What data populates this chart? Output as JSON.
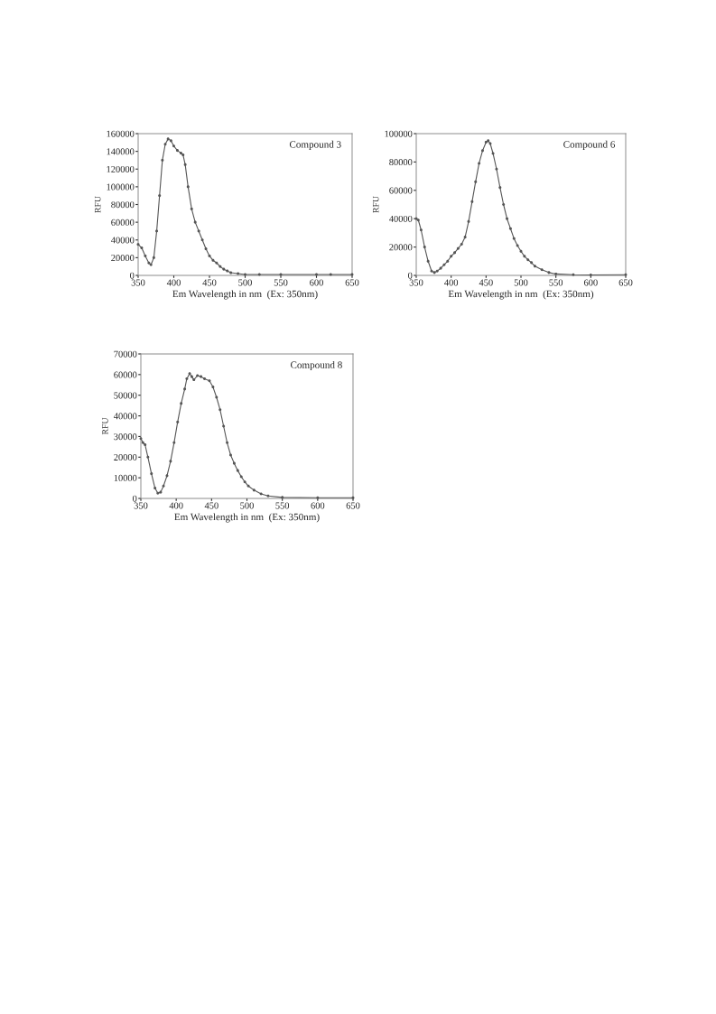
{
  "chart_data": [
    {
      "type": "line",
      "xlabel": "Em Wavelength in nm  (Ex: 350nm)",
      "ylabel": "RFU",
      "annotations": [
        "Compound 3"
      ],
      "xlim": [
        350,
        650
      ],
      "xticks": [
        350,
        400,
        450,
        500,
        550,
        600,
        650
      ],
      "ylim": [
        0,
        160000
      ],
      "yticks": [
        0,
        20000,
        40000,
        60000,
        80000,
        100000,
        120000,
        140000,
        160000
      ],
      "grid": false,
      "marker": "circle",
      "line_style": "solid",
      "series": [
        {
          "color": "#555555",
          "x": [
            350,
            355,
            360,
            365,
            368,
            372,
            376,
            380,
            384,
            388,
            392,
            396,
            400,
            405,
            410,
            413,
            416,
            420,
            425,
            430,
            435,
            440,
            445,
            450,
            455,
            460,
            465,
            470,
            475,
            480,
            490,
            500,
            520,
            550,
            600,
            620,
            650
          ],
          "values": [
            35000,
            31000,
            22000,
            14000,
            12000,
            20000,
            50000,
            90000,
            130000,
            148000,
            154000,
            152000,
            146000,
            141000,
            138000,
            136000,
            125000,
            100000,
            75000,
            60000,
            50000,
            40000,
            30000,
            22000,
            17000,
            14000,
            10000,
            7000,
            5000,
            3000,
            2000,
            1000,
            1000,
            1000,
            1000,
            1000,
            1000
          ]
        }
      ]
    },
    {
      "type": "line",
      "xlabel": "Em Wavelength in nm  (Ex: 350nm)",
      "ylabel": "RFU",
      "annotations": [
        "Compound 6"
      ],
      "xlim": [
        350,
        650
      ],
      "xticks": [
        350,
        400,
        450,
        500,
        550,
        600,
        650
      ],
      "ylim": [
        0,
        100000
      ],
      "yticks": [
        0,
        20000,
        40000,
        60000,
        80000,
        100000
      ],
      "grid": false,
      "marker": "circle",
      "line_style": "solid",
      "series": [
        {
          "color": "#555555",
          "x": [
            350,
            353,
            357,
            362,
            367,
            372,
            376,
            380,
            385,
            390,
            395,
            400,
            405,
            410,
            415,
            420,
            425,
            430,
            435,
            440,
            445,
            450,
            453,
            456,
            460,
            465,
            470,
            475,
            480,
            485,
            490,
            495,
            500,
            505,
            510,
            515,
            520,
            530,
            540,
            550,
            575,
            600,
            650
          ],
          "values": [
            40000,
            39000,
            32000,
            20000,
            10000,
            3000,
            2000,
            3000,
            5000,
            7500,
            10000,
            13500,
            16000,
            19000,
            22000,
            27000,
            38000,
            52000,
            66000,
            79000,
            88000,
            94000,
            95000,
            93000,
            86000,
            75000,
            62000,
            50000,
            40000,
            33000,
            26000,
            21000,
            17000,
            13500,
            11000,
            9000,
            6500,
            4000,
            2000,
            1000,
            500,
            300,
            500
          ]
        }
      ]
    },
    {
      "type": "line",
      "xlabel": "Em Wavelength in nm  (Ex: 350nm)",
      "ylabel": "RFU",
      "annotations": [
        "Compound 8"
      ],
      "xlim": [
        350,
        650
      ],
      "xticks": [
        350,
        400,
        450,
        500,
        550,
        600,
        650
      ],
      "ylim": [
        0,
        70000
      ],
      "yticks": [
        0,
        10000,
        20000,
        30000,
        40000,
        50000,
        60000,
        70000
      ],
      "grid": false,
      "marker": "circle",
      "line_style": "solid",
      "series": [
        {
          "color": "#555555",
          "x": [
            350,
            353,
            356,
            360,
            365,
            370,
            374,
            378,
            382,
            387,
            392,
            397,
            402,
            407,
            412,
            415,
            419,
            422,
            425,
            430,
            435,
            440,
            447,
            452,
            457,
            462,
            467,
            472,
            477,
            482,
            487,
            492,
            497,
            502,
            510,
            520,
            530,
            550,
            600,
            650
          ],
          "values": [
            29000,
            27000,
            26000,
            20000,
            12000,
            5000,
            2500,
            3000,
            6000,
            11000,
            18000,
            27000,
            37000,
            46000,
            53000,
            58000,
            60500,
            59000,
            57500,
            59500,
            59000,
            58000,
            57000,
            54000,
            49000,
            43000,
            35000,
            27000,
            21000,
            17000,
            13500,
            10500,
            8000,
            6000,
            4000,
            2200,
            1200,
            500,
            300,
            300
          ]
        }
      ]
    }
  ]
}
